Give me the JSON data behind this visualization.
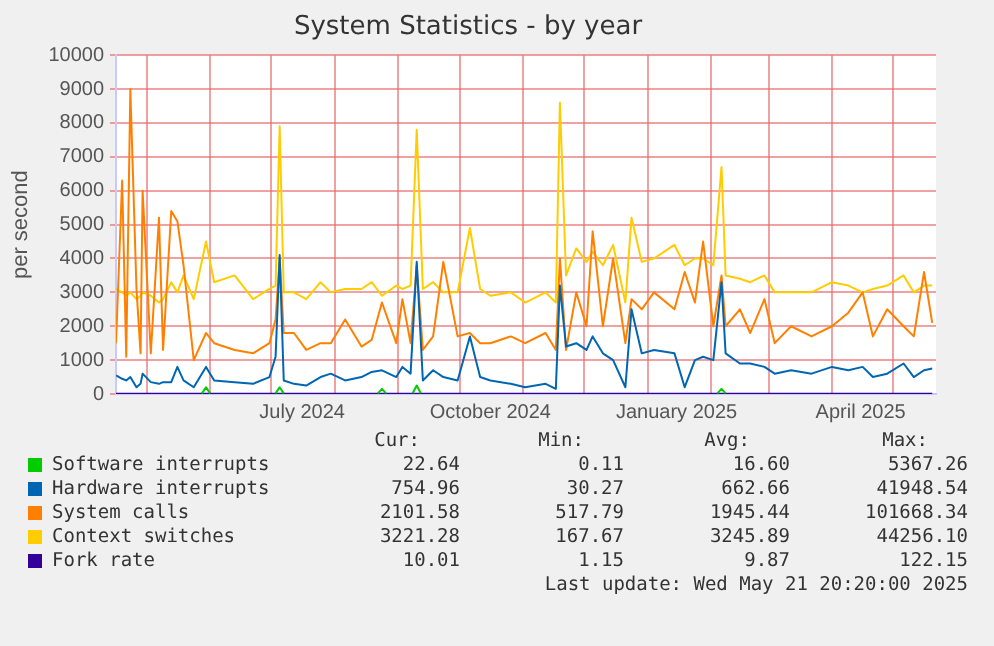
{
  "chart_data": {
    "type": "line",
    "title": "System Statistics - by year",
    "ylabel": "per second",
    "xlim": [
      "2024-04-16",
      "2025-05-21T20:20"
    ],
    "xticks": [
      {
        "value": "2024-05-01",
        "label": null
      },
      {
        "value": "2024-06-01",
        "label": null
      },
      {
        "value": "2024-07-01",
        "label": null
      },
      {
        "value": "2024-07-16",
        "label": "July 2024"
      },
      {
        "value": "2024-08-01",
        "label": null
      },
      {
        "value": "2024-09-01",
        "label": null
      },
      {
        "value": "2024-10-01",
        "label": null
      },
      {
        "value": "2024-10-16",
        "label": "October 2024"
      },
      {
        "value": "2024-11-01",
        "label": null
      },
      {
        "value": "2024-12-01",
        "label": null
      },
      {
        "value": "2025-01-01",
        "label": null
      },
      {
        "value": "2025-01-15",
        "label": "January 2025"
      },
      {
        "value": "2025-02-01",
        "label": null
      },
      {
        "value": "2025-03-01",
        "label": null
      },
      {
        "value": "2025-04-01",
        "label": null
      },
      {
        "value": "2025-04-15",
        "label": "April 2025"
      },
      {
        "value": "2025-05-01",
        "label": null
      }
    ],
    "ylim": [
      0,
      10000
    ],
    "yticks": [
      0,
      1000,
      2000,
      3000,
      4000,
      5000,
      6000,
      7000,
      8000,
      9000,
      10000
    ],
    "grid": true,
    "legend": "bottom",
    "marker": "none",
    "line_style": "solid",
    "x": [
      "2024-04-16",
      "2024-04-19",
      "2024-04-21",
      "2024-04-23",
      "2024-04-26",
      "2024-04-28",
      "2024-04-29",
      "2024-05-03",
      "2024-05-07",
      "2024-05-09",
      "2024-05-13",
      "2024-05-16",
      "2024-05-19",
      "2024-05-24",
      "2024-05-30",
      "2024-06-03",
      "2024-06-13",
      "2024-06-22",
      "2024-06-30",
      "2024-07-03",
      "2024-07-05",
      "2024-07-07",
      "2024-07-12",
      "2024-07-18",
      "2024-07-25",
      "2024-07-30",
      "2024-08-06",
      "2024-08-14",
      "2024-08-19",
      "2024-08-24",
      "2024-08-31",
      "2024-09-03",
      "2024-09-07",
      "2024-09-10",
      "2024-09-13",
      "2024-09-18",
      "2024-09-23",
      "2024-09-30",
      "2024-10-06",
      "2024-10-11",
      "2024-10-16",
      "2024-10-26",
      "2024-11-02",
      "2024-11-12",
      "2024-11-17",
      "2024-11-19",
      "2024-11-22",
      "2024-11-27",
      "2024-12-02",
      "2024-12-05",
      "2024-12-10",
      "2024-12-15",
      "2024-12-21",
      "2024-12-24",
      "2024-12-29",
      "2025-01-04",
      "2025-01-14",
      "2025-01-19",
      "2025-01-24",
      "2025-01-28",
      "2025-02-02",
      "2025-02-06",
      "2025-02-08",
      "2025-02-15",
      "2025-02-20",
      "2025-02-27",
      "2025-03-04",
      "2025-03-12",
      "2025-03-22",
      "2025-04-01",
      "2025-04-09",
      "2025-04-16",
      "2025-04-21",
      "2025-04-28",
      "2025-05-06",
      "2025-05-11",
      "2025-05-16",
      "2025-05-20"
    ],
    "series": [
      {
        "name": "Software interrupts",
        "color": "#00cc00",
        "x": [
          "2024-05-28",
          "2024-05-30",
          "2024-06-01",
          "2024-06-02",
          "2024-07-03",
          "2024-07-05",
          "2024-07-07",
          "2024-07-08",
          "2024-08-22",
          "2024-08-24",
          "2024-08-26",
          "2024-08-27",
          "2024-09-08",
          "2024-09-10",
          "2024-09-12",
          "2024-09-13",
          "2025-02-04",
          "2025-02-06",
          "2025-02-08"
        ],
        "values": [
          20,
          200,
          20,
          null,
          20,
          200,
          20,
          null,
          20,
          150,
          20,
          null,
          20,
          250,
          20,
          null,
          20,
          150,
          20
        ]
      },
      {
        "name": "Hardware interrupts",
        "color": "#0066b3",
        "values": [
          550,
          450,
          400,
          500,
          200,
          300,
          600,
          350,
          300,
          350,
          350,
          800,
          400,
          200,
          800,
          400,
          350,
          300,
          500,
          1100,
          4100,
          400,
          300,
          250,
          500,
          600,
          400,
          500,
          650,
          700,
          500,
          800,
          600,
          3900,
          400,
          700,
          500,
          400,
          1700,
          500,
          400,
          300,
          200,
          300,
          150,
          3200,
          1400,
          1500,
          1300,
          1700,
          1200,
          1000,
          200,
          2500,
          1200,
          1300,
          1200,
          200,
          1000,
          1100,
          1000,
          3300,
          1200,
          900,
          900,
          800,
          600,
          700,
          600,
          800,
          700,
          800,
          500,
          600,
          900,
          500,
          700,
          750
        ]
      },
      {
        "name": "System calls",
        "color": "#ff8000",
        "values": [
          1500,
          6300,
          1100,
          9000,
          3100,
          1200,
          6000,
          1200,
          5200,
          1300,
          5400,
          5100,
          3800,
          1000,
          1800,
          1500,
          1300,
          1200,
          1500,
          2200,
          4000,
          1800,
          1800,
          1300,
          1500,
          1500,
          2200,
          1400,
          1600,
          2700,
          1500,
          2800,
          1500,
          3800,
          1300,
          1700,
          3900,
          1700,
          1800,
          1500,
          1500,
          1700,
          1500,
          1800,
          1300,
          4000,
          1300,
          3000,
          2000,
          4800,
          2000,
          4000,
          1500,
          2800,
          2500,
          3000,
          2500,
          3600,
          2700,
          4500,
          2000,
          3500,
          2000,
          2500,
          1800,
          2800,
          1500,
          2000,
          1700,
          2000,
          2400,
          3000,
          1700,
          2500,
          2000,
          1700,
          3600,
          2100
        ]
      },
      {
        "name": "Context switches",
        "color": "#ffcc00",
        "values": [
          3100,
          3000,
          2900,
          3000,
          2800,
          2900,
          3000,
          2900,
          2700,
          2800,
          3300,
          3000,
          3500,
          2800,
          4500,
          3300,
          3500,
          2800,
          3100,
          3200,
          7900,
          3000,
          3000,
          2800,
          3300,
          3000,
          3100,
          3100,
          3300,
          2900,
          3200,
          3100,
          3200,
          7800,
          3100,
          3300,
          3000,
          3000,
          4900,
          3100,
          2900,
          3000,
          2700,
          3000,
          2700,
          8600,
          3500,
          4300,
          3900,
          4200,
          3800,
          4400,
          2700,
          5200,
          3900,
          4000,
          4400,
          3800,
          4000,
          4000,
          3800,
          6700,
          3500,
          3400,
          3300,
          3500,
          3000,
          3000,
          3000,
          3300,
          3200,
          3000,
          3100,
          3200,
          3500,
          3000,
          3200,
          3200
        ]
      },
      {
        "name": "Fork rate",
        "color": "#330099",
        "values": [
          10,
          10,
          10,
          10,
          10,
          10,
          10,
          10,
          10,
          10,
          10,
          10,
          10,
          10,
          10,
          10,
          10,
          10,
          10,
          10,
          10,
          10,
          10,
          10,
          10,
          10,
          10,
          10,
          10,
          10,
          10,
          10,
          10,
          10,
          10,
          10,
          10,
          10,
          10,
          10,
          10,
          10,
          10,
          10,
          10,
          10,
          10,
          10,
          10,
          10,
          10,
          10,
          10,
          10,
          10,
          10,
          10,
          10,
          10,
          10,
          10,
          10,
          10,
          10,
          10,
          10,
          10,
          10,
          10,
          10,
          10,
          10,
          10,
          10,
          10,
          10,
          10,
          10
        ]
      }
    ],
    "annotations": [
      "Cur:",
      "Min:",
      "Avg:",
      "Max:",
      "22.64",
      "0.11",
      "16.60",
      "5367.26",
      "754.96",
      "30.27",
      "662.66",
      "41948.54",
      "2101.58",
      "517.79",
      "1945.44",
      "101668.34",
      "3221.28",
      "167.67",
      "3245.89",
      "44256.10",
      "10.01",
      "1.15",
      "9.87",
      "122.15",
      "Last update: Wed May 21 20:20:00 2025"
    ]
  }
}
